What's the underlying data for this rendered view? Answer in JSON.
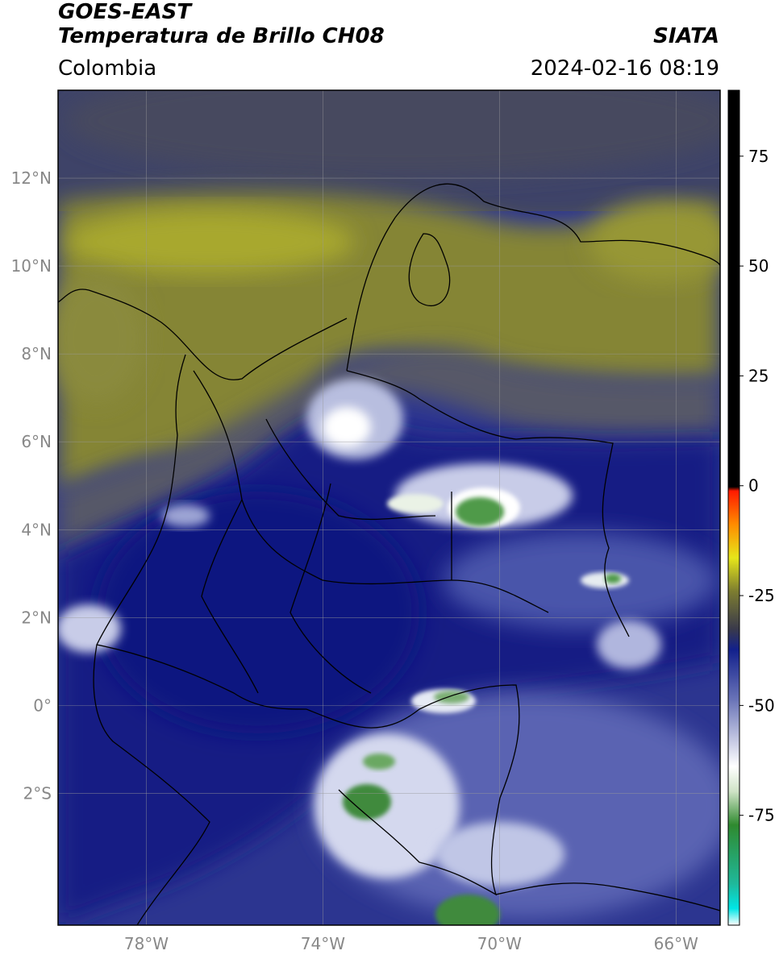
{
  "header": {
    "title_line1": "GOES-EAST",
    "title_line2": "Temperatura de Brillo CH08",
    "brand": "SIATA",
    "region": "Colombia",
    "datetime": "2024-02-16 08:19"
  },
  "map": {
    "lon_range": [
      -80,
      -65
    ],
    "lat_range": [
      -5,
      14
    ],
    "lat_ticks": [
      {
        "value": 12,
        "label": "12°N"
      },
      {
        "value": 10,
        "label": "10°N"
      },
      {
        "value": 8,
        "label": "8°N"
      },
      {
        "value": 6,
        "label": "6°N"
      },
      {
        "value": 4,
        "label": "4°N"
      },
      {
        "value": 2,
        "label": "2°N"
      },
      {
        "value": 0,
        "label": "0°"
      },
      {
        "value": -2,
        "label": "2°S"
      }
    ],
    "lon_ticks": [
      {
        "value": -78,
        "label": "78°W"
      },
      {
        "value": -74,
        "label": "74°W"
      },
      {
        "value": -70,
        "label": "70°W"
      },
      {
        "value": -66,
        "label": "66°W"
      }
    ],
    "colors": {
      "olive": "#8f8f30",
      "yellowish": "#b0b030",
      "dark_gray": "#4a4a5a",
      "navy": "#141a82",
      "blue": "#3a45a0",
      "light": "#e6e9f4",
      "green": "#3d8c3a"
    }
  },
  "colorbar": {
    "range": [
      -100,
      90
    ],
    "ticks": [
      {
        "value": 75,
        "label": "75"
      },
      {
        "value": 50,
        "label": "50"
      },
      {
        "value": 25,
        "label": "25"
      },
      {
        "value": 0,
        "label": "0"
      },
      {
        "value": -25,
        "label": "-25"
      },
      {
        "value": -50,
        "label": "-50"
      },
      {
        "value": -75,
        "label": "-75"
      }
    ]
  }
}
